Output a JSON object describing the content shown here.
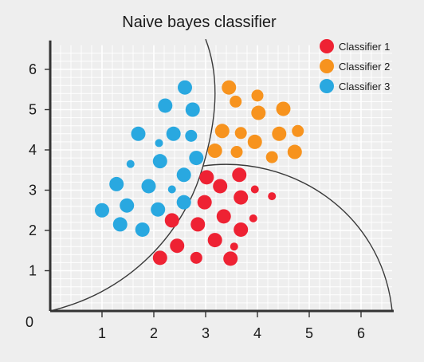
{
  "chart_data": {
    "type": "scatter",
    "title": "Naive bayes classifier",
    "xlabel": "",
    "ylabel": "",
    "xlim": [
      0,
      6.6
    ],
    "ylim": [
      0,
      6.6
    ],
    "grid": true,
    "legend_position": "top-right",
    "origin_label": "0",
    "x_ticks": [
      "1",
      "2",
      "3",
      "4",
      "5",
      "6"
    ],
    "y_ticks": [
      "1",
      "2",
      "3",
      "4",
      "5",
      "6"
    ],
    "series": [
      {
        "name": "Classifier 1",
        "color": "#ee2233",
        "points": [
          {
            "x": 2.12,
            "y": 1.32,
            "r": "l"
          },
          {
            "x": 2.45,
            "y": 1.62,
            "r": "l"
          },
          {
            "x": 2.82,
            "y": 1.32,
            "r": "m"
          },
          {
            "x": 3.18,
            "y": 1.76,
            "r": "l"
          },
          {
            "x": 3.48,
            "y": 1.3,
            "r": "l"
          },
          {
            "x": 3.55,
            "y": 1.6,
            "r": "s"
          },
          {
            "x": 2.35,
            "y": 2.25,
            "r": "l"
          },
          {
            "x": 2.85,
            "y": 2.15,
            "r": "l"
          },
          {
            "x": 3.35,
            "y": 2.35,
            "r": "l"
          },
          {
            "x": 3.68,
            "y": 2.02,
            "r": "l"
          },
          {
            "x": 3.92,
            "y": 2.3,
            "r": "s"
          },
          {
            "x": 2.98,
            "y": 2.7,
            "r": "l"
          },
          {
            "x": 3.28,
            "y": 3.1,
            "r": "l"
          },
          {
            "x": 3.68,
            "y": 2.82,
            "r": "l"
          },
          {
            "x": 3.02,
            "y": 3.32,
            "r": "l"
          },
          {
            "x": 3.65,
            "y": 3.38,
            "r": "l"
          },
          {
            "x": 3.95,
            "y": 3.02,
            "r": "s"
          },
          {
            "x": 4.28,
            "y": 2.85,
            "r": "s"
          }
        ]
      },
      {
        "name": "Classifier 2",
        "color": "#f7931e",
        "points": [
          {
            "x": 3.45,
            "y": 5.55,
            "r": "l"
          },
          {
            "x": 3.58,
            "y": 5.2,
            "r": "m"
          },
          {
            "x": 4.0,
            "y": 5.35,
            "r": "m"
          },
          {
            "x": 4.02,
            "y": 4.92,
            "r": "l"
          },
          {
            "x": 4.5,
            "y": 5.02,
            "r": "l"
          },
          {
            "x": 3.32,
            "y": 4.47,
            "r": "l"
          },
          {
            "x": 3.68,
            "y": 4.42,
            "r": "m"
          },
          {
            "x": 3.95,
            "y": 4.2,
            "r": "l"
          },
          {
            "x": 4.42,
            "y": 4.4,
            "r": "l"
          },
          {
            "x": 4.78,
            "y": 4.47,
            "r": "m"
          },
          {
            "x": 3.18,
            "y": 3.98,
            "r": "l"
          },
          {
            "x": 3.6,
            "y": 3.95,
            "r": "m"
          },
          {
            "x": 4.28,
            "y": 3.82,
            "r": "m"
          },
          {
            "x": 4.72,
            "y": 3.95,
            "r": "l"
          }
        ]
      },
      {
        "name": "Classifier 3",
        "color": "#29a8e0",
        "points": [
          {
            "x": 2.6,
            "y": 5.55,
            "r": "l"
          },
          {
            "x": 2.22,
            "y": 5.1,
            "r": "l"
          },
          {
            "x": 2.75,
            "y": 5.0,
            "r": "l"
          },
          {
            "x": 1.7,
            "y": 4.4,
            "r": "l"
          },
          {
            "x": 2.1,
            "y": 4.17,
            "r": "s"
          },
          {
            "x": 2.38,
            "y": 4.4,
            "r": "l"
          },
          {
            "x": 2.72,
            "y": 4.35,
            "r": "m"
          },
          {
            "x": 1.55,
            "y": 3.65,
            "r": "s"
          },
          {
            "x": 2.12,
            "y": 3.72,
            "r": "l"
          },
          {
            "x": 2.82,
            "y": 3.8,
            "r": "l"
          },
          {
            "x": 2.58,
            "y": 3.38,
            "r": "l"
          },
          {
            "x": 1.28,
            "y": 3.15,
            "r": "l"
          },
          {
            "x": 1.9,
            "y": 3.1,
            "r": "l"
          },
          {
            "x": 2.35,
            "y": 3.02,
            "r": "s"
          },
          {
            "x": 1.0,
            "y": 2.5,
            "r": "l"
          },
          {
            "x": 1.48,
            "y": 2.62,
            "r": "l"
          },
          {
            "x": 2.08,
            "y": 2.52,
            "r": "l"
          },
          {
            "x": 2.58,
            "y": 2.7,
            "r": "l"
          },
          {
            "x": 1.35,
            "y": 2.15,
            "r": "l"
          },
          {
            "x": 1.78,
            "y": 2.02,
            "r": "l"
          }
        ]
      }
    ]
  }
}
